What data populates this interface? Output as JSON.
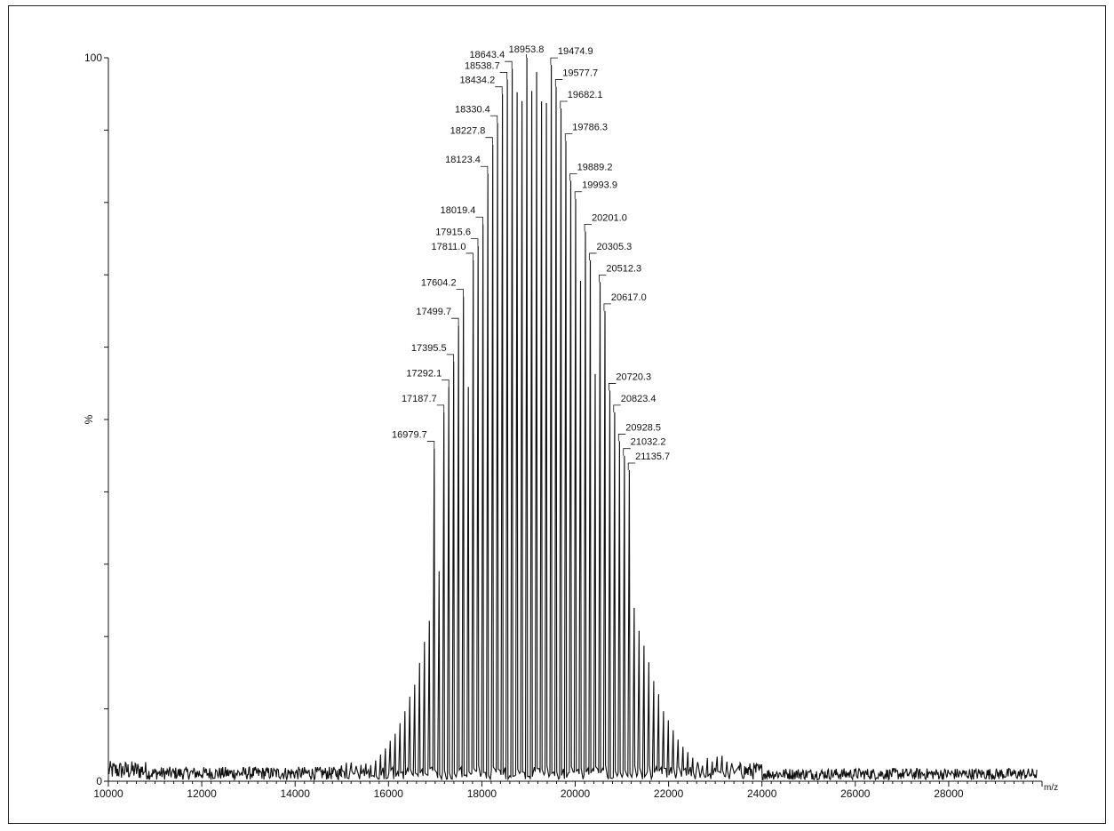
{
  "chart_data": {
    "type": "line",
    "title": "",
    "xlabel": "m/z",
    "ylabel": "%",
    "xlim": [
      10000,
      30000
    ],
    "ylim": [
      0,
      100
    ],
    "grid": false,
    "legend": "none",
    "line_color": "#111111",
    "x_ticks": [
      "10000",
      "12000",
      "14000",
      "16000",
      "18000",
      "20000",
      "22000",
      "24000",
      "26000",
      "28000"
    ],
    "y_ticks": [
      "0",
      "100"
    ],
    "peak_spacing": 104.5,
    "envelope_range": [
      15000,
      23400
    ],
    "peaks": [
      {
        "x": 16979.7,
        "y": 46,
        "label": "16979.7"
      },
      {
        "x": 17187.7,
        "y": 51,
        "label": "17187.7"
      },
      {
        "x": 17292.1,
        "y": 54.5,
        "label": "17292.1"
      },
      {
        "x": 17395.5,
        "y": 58,
        "label": "17395.5"
      },
      {
        "x": 17499.7,
        "y": 63,
        "label": "17499.7"
      },
      {
        "x": 17604.2,
        "y": 67,
        "label": "17604.2"
      },
      {
        "x": 17811.0,
        "y": 72,
        "label": "17811.0"
      },
      {
        "x": 17915.6,
        "y": 74,
        "label": "17915.6"
      },
      {
        "x": 18019.4,
        "y": 77,
        "label": "18019.4"
      },
      {
        "x": 18123.4,
        "y": 84,
        "label": "18123.4"
      },
      {
        "x": 18227.8,
        "y": 88,
        "label": "18227.8"
      },
      {
        "x": 18330.4,
        "y": 91,
        "label": "18330.4"
      },
      {
        "x": 18434.2,
        "y": 95,
        "label": "18434.2"
      },
      {
        "x": 18538.7,
        "y": 97,
        "label": "18538.7"
      },
      {
        "x": 18643.4,
        "y": 98.5,
        "label": "18643.4"
      },
      {
        "x": 18953.8,
        "y": 100,
        "label": "18953.8"
      },
      {
        "x": 19474.9,
        "y": 99,
        "label": "19474.9"
      },
      {
        "x": 19577.7,
        "y": 96,
        "label": "19577.7"
      },
      {
        "x": 19682.1,
        "y": 93,
        "label": "19682.1"
      },
      {
        "x": 19786.3,
        "y": 88.5,
        "label": "19786.3"
      },
      {
        "x": 19889.2,
        "y": 83,
        "label": "19889.2"
      },
      {
        "x": 19993.9,
        "y": 80.5,
        "label": "19993.9"
      },
      {
        "x": 20201.0,
        "y": 76,
        "label": "20201.0"
      },
      {
        "x": 20305.3,
        "y": 72,
        "label": "20305.3"
      },
      {
        "x": 20512.3,
        "y": 69,
        "label": "20512.3"
      },
      {
        "x": 20617.0,
        "y": 65,
        "label": "20617.0"
      },
      {
        "x": 20720.3,
        "y": 54,
        "label": "20720.3"
      },
      {
        "x": 20823.4,
        "y": 51,
        "label": "20823.4"
      },
      {
        "x": 20928.5,
        "y": 47,
        "label": "20928.5"
      },
      {
        "x": 21032.2,
        "y": 45,
        "label": "21032.2"
      },
      {
        "x": 21135.7,
        "y": 43,
        "label": "21135.7"
      }
    ]
  }
}
